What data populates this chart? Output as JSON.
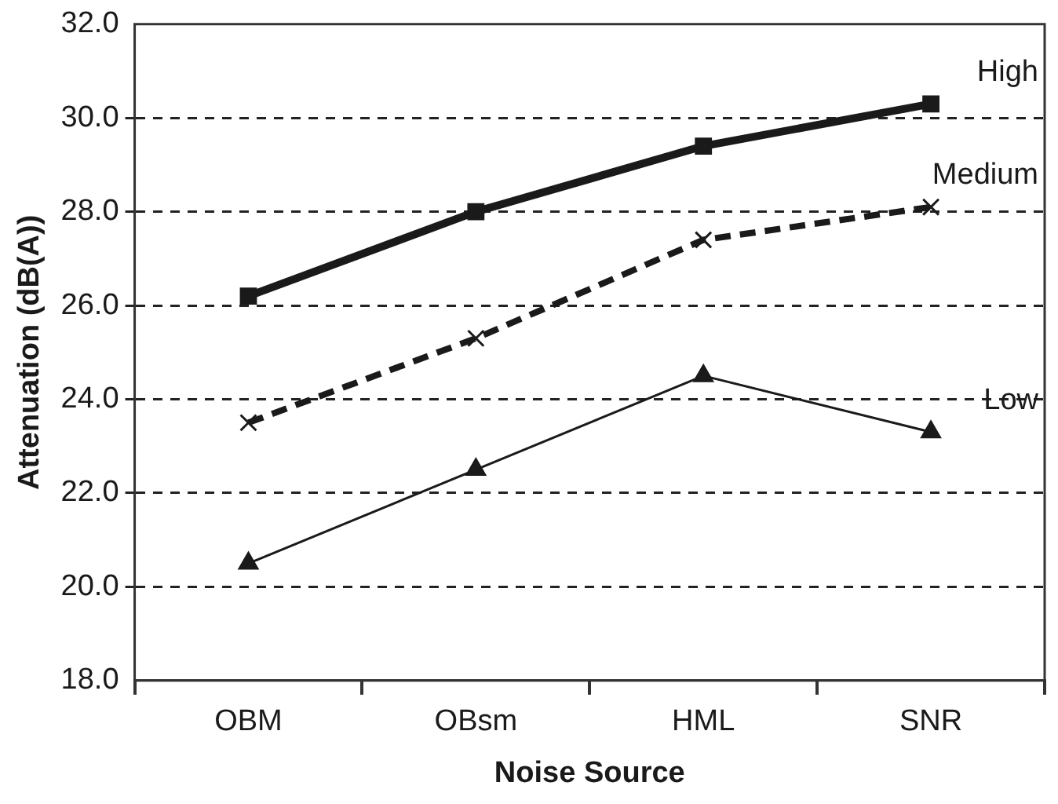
{
  "chart_data": {
    "type": "line",
    "xlabel": "Noise Source",
    "ylabel": "Attenuation (dB(A))",
    "categories": [
      "OBM",
      "OBsm",
      "HML",
      "SNR"
    ],
    "series": [
      {
        "name": "High",
        "color": "#1a1a1a",
        "values": [
          26.2,
          28.0,
          29.4,
          30.3
        ],
        "marker": "square",
        "line_style": "solid"
      },
      {
        "name": "Medium",
        "color": "#1a1a1a",
        "values": [
          23.5,
          25.3,
          27.4,
          28.1
        ],
        "marker": "cross",
        "line_style": "dashed"
      },
      {
        "name": "Low",
        "color": "#1a1a1a",
        "values": [
          20.5,
          22.5,
          24.5,
          23.3
        ],
        "marker": "triangle",
        "line_style": "solid"
      }
    ],
    "ylim": [
      18,
      32
    ],
    "yticks": [
      {
        "value": 18,
        "label": "18.0"
      },
      {
        "value": 20,
        "label": "20.0"
      },
      {
        "value": 22,
        "label": "22.0"
      },
      {
        "value": 24,
        "label": "24.0"
      },
      {
        "value": 26,
        "label": "26.0"
      },
      {
        "value": 28,
        "label": "28.0"
      },
      {
        "value": 30,
        "label": "30.0"
      },
      {
        "value": 32,
        "label": "32.0"
      }
    ],
    "grid": "y",
    "legend": false
  }
}
